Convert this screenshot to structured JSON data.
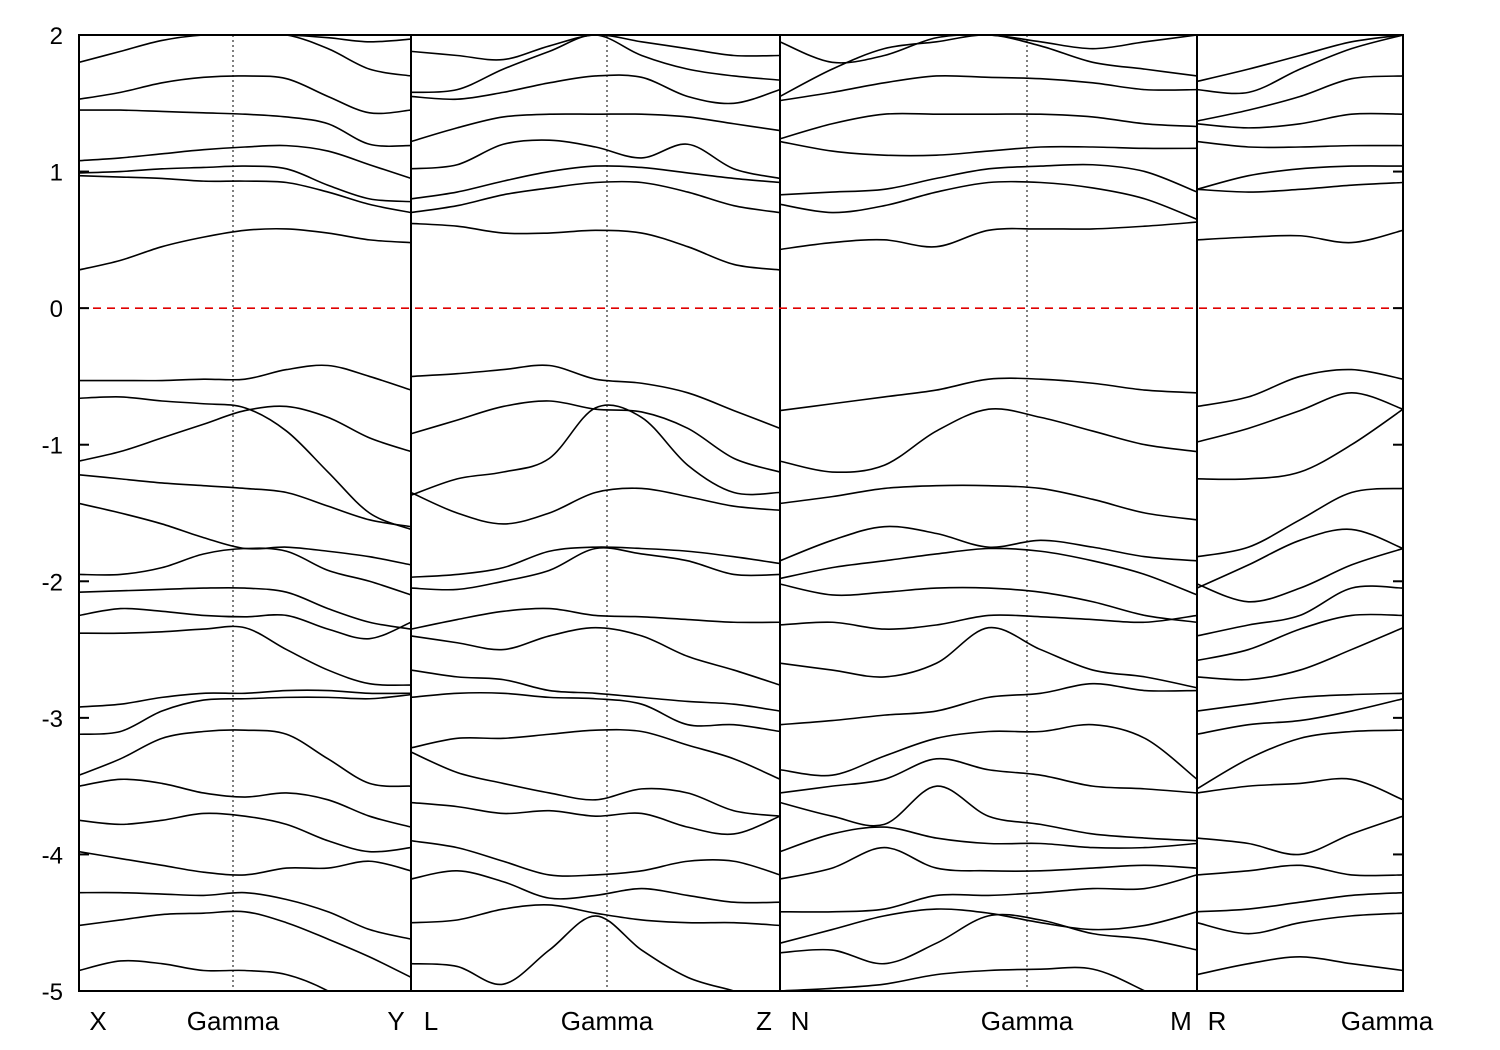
{
  "chart_data": {
    "type": "line",
    "title": "",
    "xlabel": "",
    "ylabel": "",
    "ylim": [
      -5,
      2
    ],
    "yticks": [
      -5,
      -4,
      -3,
      -2,
      -1,
      0,
      1,
      2
    ],
    "grid": false,
    "legend": "none",
    "x_label_set": [
      "X",
      "Gamma",
      "Y",
      "L",
      "Gamma",
      "Z",
      "N",
      "Gamma",
      "M",
      "R",
      "Gamma"
    ],
    "segments": [
      {
        "labels": [
          "X",
          "Gamma",
          "Y"
        ],
        "x": [
          0.0,
          0.25,
          0.5,
          0.75,
          1.0,
          1.25,
          1.5,
          1.75,
          2.0
        ],
        "bands": [
          [
            -4.85,
            -4.78,
            -4.8,
            -4.85,
            -4.85,
            -4.88,
            -5.0,
            -5.2,
            -5.3
          ],
          [
            -4.52,
            -4.48,
            -4.44,
            -4.43,
            -4.42,
            -4.5,
            -4.62,
            -4.75,
            -4.9
          ],
          [
            -4.28,
            -4.28,
            -4.29,
            -4.3,
            -4.28,
            -4.33,
            -4.42,
            -4.55,
            -4.62
          ],
          [
            -3.98,
            -4.03,
            -4.08,
            -4.13,
            -4.15,
            -4.1,
            -4.1,
            -4.05,
            -4.12
          ],
          [
            -3.75,
            -3.78,
            -3.75,
            -3.7,
            -3.72,
            -3.78,
            -3.9,
            -3.98,
            -3.95
          ],
          [
            -3.5,
            -3.45,
            -3.48,
            -3.55,
            -3.58,
            -3.55,
            -3.6,
            -3.72,
            -3.8
          ],
          [
            -3.42,
            -3.3,
            -3.15,
            -3.1,
            -3.09,
            -3.12,
            -3.3,
            -3.48,
            -3.5
          ],
          [
            -3.12,
            -3.1,
            -2.95,
            -2.87,
            -2.86,
            -2.85,
            -2.85,
            -2.86,
            -2.83
          ],
          [
            -2.92,
            -2.9,
            -2.85,
            -2.82,
            -2.82,
            -2.8,
            -2.8,
            -2.82,
            -2.82
          ],
          [
            -2.38,
            -2.38,
            -2.37,
            -2.35,
            -2.34,
            -2.5,
            -2.65,
            -2.75,
            -2.76
          ],
          [
            -2.25,
            -2.2,
            -2.22,
            -2.25,
            -2.26,
            -2.25,
            -2.35,
            -2.42,
            -2.3
          ],
          [
            -2.08,
            -2.07,
            -2.06,
            -2.05,
            -2.05,
            -2.08,
            -2.2,
            -2.3,
            -2.35
          ],
          [
            -1.95,
            -1.95,
            -1.9,
            -1.8,
            -1.76,
            -1.78,
            -1.92,
            -2.0,
            -2.1
          ],
          [
            -1.43,
            -1.5,
            -1.58,
            -1.68,
            -1.76,
            -1.75,
            -1.78,
            -1.82,
            -1.88
          ],
          [
            -1.22,
            -1.25,
            -1.28,
            -1.3,
            -1.32,
            -1.35,
            -1.45,
            -1.55,
            -1.6
          ],
          [
            -1.12,
            -1.05,
            -0.95,
            -0.85,
            -0.75,
            -0.72,
            -0.8,
            -0.95,
            -1.05
          ],
          [
            -0.66,
            -0.65,
            -0.68,
            -0.7,
            -0.73,
            -0.9,
            -1.2,
            -1.5,
            -1.62
          ],
          [
            -0.53,
            -0.53,
            -0.53,
            -0.52,
            -0.52,
            -0.45,
            -0.42,
            -0.5,
            -0.6
          ],
          [
            0.28,
            0.35,
            0.45,
            0.52,
            0.57,
            0.58,
            0.55,
            0.5,
            0.48
          ],
          [
            0.97,
            0.96,
            0.95,
            0.93,
            0.93,
            0.92,
            0.85,
            0.76,
            0.7
          ],
          [
            0.99,
            1.0,
            1.02,
            1.03,
            1.04,
            1.02,
            0.9,
            0.8,
            0.78
          ],
          [
            1.08,
            1.1,
            1.13,
            1.16,
            1.18,
            1.19,
            1.15,
            1.05,
            0.95
          ],
          [
            1.45,
            1.45,
            1.44,
            1.43,
            1.42,
            1.4,
            1.35,
            1.2,
            1.19
          ],
          [
            1.53,
            1.58,
            1.65,
            1.69,
            1.7,
            1.68,
            1.55,
            1.43,
            1.45
          ],
          [
            1.8,
            1.88,
            1.96,
            2.0,
            2.0,
            2.0,
            1.9,
            1.75,
            1.7
          ],
          [
            2.1,
            2.08,
            2.05,
            2.02,
            2.0,
            2.0,
            1.98,
            1.95,
            1.97
          ]
        ]
      },
      {
        "labels": [
          "L",
          "Gamma",
          "Z"
        ],
        "x": [
          0.0,
          0.25,
          0.5,
          0.75,
          1.0,
          1.25,
          1.5,
          1.75,
          2.0
        ],
        "bands": [
          [
            -4.8,
            -4.82,
            -4.95,
            -4.7,
            -4.45,
            -4.7,
            -4.9,
            -5.0,
            -5.1
          ],
          [
            -4.5,
            -4.48,
            -4.4,
            -4.37,
            -4.43,
            -4.48,
            -4.5,
            -4.5,
            -4.52
          ],
          [
            -4.18,
            -4.12,
            -4.2,
            -4.32,
            -4.3,
            -4.25,
            -4.3,
            -4.35,
            -4.35
          ],
          [
            -3.9,
            -3.95,
            -4.05,
            -4.15,
            -4.15,
            -4.12,
            -4.05,
            -4.05,
            -4.15
          ],
          [
            -3.62,
            -3.65,
            -3.7,
            -3.68,
            -3.72,
            -3.7,
            -3.8,
            -3.85,
            -3.72
          ],
          [
            -3.25,
            -3.4,
            -3.48,
            -3.55,
            -3.6,
            -3.52,
            -3.55,
            -3.68,
            -3.72
          ],
          [
            -3.22,
            -3.15,
            -3.15,
            -3.12,
            -3.09,
            -3.1,
            -3.2,
            -3.3,
            -3.45
          ],
          [
            -2.85,
            -2.82,
            -2.82,
            -2.85,
            -2.86,
            -2.9,
            -3.05,
            -3.05,
            -3.1
          ],
          [
            -2.65,
            -2.7,
            -2.72,
            -2.8,
            -2.82,
            -2.85,
            -2.88,
            -2.9,
            -2.95
          ],
          [
            -2.4,
            -2.45,
            -2.5,
            -2.4,
            -2.34,
            -2.4,
            -2.55,
            -2.65,
            -2.76
          ],
          [
            -2.35,
            -2.28,
            -2.22,
            -2.2,
            -2.25,
            -2.26,
            -2.28,
            -2.3,
            -2.3
          ],
          [
            -2.05,
            -2.06,
            -2.0,
            -1.92,
            -1.76,
            -1.8,
            -1.85,
            -1.95,
            -1.95
          ],
          [
            -1.97,
            -1.95,
            -1.9,
            -1.78,
            -1.75,
            -1.76,
            -1.78,
            -1.82,
            -1.87
          ],
          [
            -1.35,
            -1.5,
            -1.58,
            -1.5,
            -1.35,
            -1.32,
            -1.38,
            -1.45,
            -1.48
          ],
          [
            -1.37,
            -1.25,
            -1.2,
            -1.1,
            -0.73,
            -0.8,
            -1.15,
            -1.35,
            -1.35
          ],
          [
            -0.92,
            -0.82,
            -0.72,
            -0.68,
            -0.74,
            -0.76,
            -0.88,
            -1.1,
            -1.2
          ],
          [
            -0.5,
            -0.48,
            -0.45,
            -0.42,
            -0.52,
            -0.55,
            -0.62,
            -0.75,
            -0.88
          ],
          [
            0.62,
            0.6,
            0.55,
            0.55,
            0.57,
            0.55,
            0.45,
            0.32,
            0.28
          ],
          [
            0.7,
            0.75,
            0.83,
            0.88,
            0.92,
            0.92,
            0.85,
            0.75,
            0.7
          ],
          [
            0.8,
            0.85,
            0.93,
            1.0,
            1.04,
            1.03,
            0.99,
            0.95,
            0.92
          ],
          [
            1.02,
            1.05,
            1.2,
            1.23,
            1.18,
            1.1,
            1.2,
            1.02,
            0.95
          ],
          [
            1.22,
            1.32,
            1.4,
            1.42,
            1.42,
            1.42,
            1.4,
            1.35,
            1.3
          ],
          [
            1.55,
            1.53,
            1.58,
            1.65,
            1.7,
            1.69,
            1.55,
            1.5,
            1.6
          ],
          [
            1.58,
            1.6,
            1.75,
            1.88,
            2.0,
            1.85,
            1.75,
            1.7,
            1.67
          ],
          [
            1.88,
            1.85,
            1.82,
            1.92,
            2.0,
            1.95,
            1.9,
            1.85,
            1.85
          ]
        ]
      },
      {
        "labels": [
          "N",
          "Gamma",
          "M"
        ],
        "x": [
          0.0,
          0.25,
          0.5,
          0.75,
          1.0,
          1.25,
          1.5,
          1.75,
          2.0
        ],
        "bands": [
          [
            -5.0,
            -4.98,
            -4.95,
            -4.88,
            -4.85,
            -4.84,
            -4.84,
            -5.0,
            -5.2
          ],
          [
            -4.72,
            -4.7,
            -4.8,
            -4.65,
            -4.45,
            -4.48,
            -4.58,
            -4.62,
            -4.7
          ],
          [
            -4.65,
            -4.55,
            -4.45,
            -4.4,
            -4.43,
            -4.5,
            -4.55,
            -4.52,
            -4.42
          ],
          [
            -4.42,
            -4.42,
            -4.4,
            -4.3,
            -4.3,
            -4.28,
            -4.25,
            -4.25,
            -4.15
          ],
          [
            -4.18,
            -4.1,
            -3.95,
            -4.1,
            -4.12,
            -4.12,
            -4.1,
            -4.08,
            -4.1
          ],
          [
            -3.98,
            -3.85,
            -3.8,
            -3.88,
            -3.92,
            -3.92,
            -3.95,
            -3.95,
            -3.92
          ],
          [
            -3.62,
            -3.72,
            -3.78,
            -3.5,
            -3.72,
            -3.78,
            -3.85,
            -3.88,
            -3.9
          ],
          [
            -3.55,
            -3.5,
            -3.45,
            -3.3,
            -3.38,
            -3.42,
            -3.5,
            -3.52,
            -3.55
          ],
          [
            -3.38,
            -3.42,
            -3.28,
            -3.15,
            -3.1,
            -3.1,
            -3.05,
            -3.15,
            -3.45
          ],
          [
            -3.05,
            -3.02,
            -2.98,
            -2.95,
            -2.85,
            -2.82,
            -2.75,
            -2.8,
            -2.8
          ],
          [
            -2.6,
            -2.65,
            -2.7,
            -2.6,
            -2.34,
            -2.5,
            -2.65,
            -2.7,
            -2.78
          ],
          [
            -2.32,
            -2.3,
            -2.35,
            -2.32,
            -2.25,
            -2.26,
            -2.28,
            -2.3,
            -2.25
          ],
          [
            -2.02,
            -2.1,
            -2.08,
            -2.05,
            -2.05,
            -2.08,
            -2.15,
            -2.25,
            -2.3
          ],
          [
            -1.98,
            -1.9,
            -1.85,
            -1.8,
            -1.76,
            -1.78,
            -1.85,
            -1.95,
            -2.1
          ],
          [
            -1.85,
            -1.7,
            -1.6,
            -1.65,
            -1.75,
            -1.7,
            -1.75,
            -1.82,
            -1.85
          ],
          [
            -1.43,
            -1.38,
            -1.32,
            -1.3,
            -1.3,
            -1.32,
            -1.4,
            -1.5,
            -1.55
          ],
          [
            -1.12,
            -1.2,
            -1.15,
            -0.9,
            -0.74,
            -0.8,
            -0.9,
            -1.0,
            -1.05
          ],
          [
            -0.75,
            -0.7,
            -0.65,
            -0.6,
            -0.52,
            -0.52,
            -0.55,
            -0.6,
            -0.62
          ],
          [
            0.43,
            0.48,
            0.5,
            0.45,
            0.57,
            0.58,
            0.58,
            0.6,
            0.63
          ],
          [
            0.76,
            0.7,
            0.75,
            0.85,
            0.92,
            0.92,
            0.88,
            0.8,
            0.65
          ],
          [
            0.83,
            0.85,
            0.87,
            0.95,
            1.02,
            1.04,
            1.05,
            1.0,
            0.85
          ],
          [
            1.22,
            1.15,
            1.12,
            1.12,
            1.15,
            1.18,
            1.18,
            1.17,
            1.17
          ],
          [
            1.24,
            1.35,
            1.42,
            1.42,
            1.42,
            1.42,
            1.4,
            1.35,
            1.33
          ],
          [
            1.52,
            1.58,
            1.65,
            1.7,
            1.69,
            1.68,
            1.65,
            1.6,
            1.6
          ],
          [
            1.55,
            1.75,
            1.9,
            1.95,
            2.0,
            1.92,
            1.8,
            1.75,
            1.7
          ],
          [
            1.95,
            1.8,
            1.85,
            1.98,
            2.0,
            1.95,
            1.9,
            1.95,
            2.0
          ]
        ]
      },
      {
        "labels": [
          "R",
          "Gamma"
        ],
        "x": [
          0.0,
          0.25,
          0.5,
          0.75,
          1.0
        ],
        "bands": [
          [
            -4.88,
            -4.8,
            -4.75,
            -4.8,
            -4.85
          ],
          [
            -4.5,
            -4.58,
            -4.5,
            -4.45,
            -4.43
          ],
          [
            -4.42,
            -4.4,
            -4.35,
            -4.3,
            -4.28
          ],
          [
            -4.15,
            -4.12,
            -4.08,
            -4.15,
            -4.15
          ],
          [
            -3.88,
            -3.92,
            -4.0,
            -3.85,
            -3.72
          ],
          [
            -3.55,
            -3.5,
            -3.48,
            -3.45,
            -3.6
          ],
          [
            -3.52,
            -3.3,
            -3.15,
            -3.1,
            -3.09
          ],
          [
            -3.12,
            -3.05,
            -3.02,
            -2.95,
            -2.86
          ],
          [
            -2.95,
            -2.9,
            -2.85,
            -2.83,
            -2.82
          ],
          [
            -2.7,
            -2.72,
            -2.65,
            -2.5,
            -2.34
          ],
          [
            -2.58,
            -2.5,
            -2.35,
            -2.25,
            -2.25
          ],
          [
            -2.4,
            -2.32,
            -2.25,
            -2.05,
            -2.05
          ],
          [
            -2.02,
            -2.15,
            -2.05,
            -1.88,
            -1.76
          ],
          [
            -2.05,
            -1.88,
            -1.7,
            -1.62,
            -1.76
          ],
          [
            -1.82,
            -1.75,
            -1.55,
            -1.35,
            -1.32
          ],
          [
            -1.25,
            -1.25,
            -1.2,
            -1.0,
            -0.74
          ],
          [
            -0.98,
            -0.88,
            -0.75,
            -0.62,
            -0.74
          ],
          [
            -0.72,
            -0.65,
            -0.5,
            -0.45,
            -0.52
          ],
          [
            0.5,
            0.52,
            0.53,
            0.48,
            0.57
          ],
          [
            0.87,
            0.85,
            0.87,
            0.9,
            0.92
          ],
          [
            0.87,
            0.97,
            1.02,
            1.04,
            1.04
          ],
          [
            1.22,
            1.18,
            1.18,
            1.19,
            1.19
          ],
          [
            1.35,
            1.32,
            1.35,
            1.42,
            1.42
          ],
          [
            1.37,
            1.45,
            1.55,
            1.68,
            1.7
          ],
          [
            1.6,
            1.58,
            1.75,
            1.9,
            2.0
          ],
          [
            1.66,
            1.75,
            1.85,
            1.95,
            2.0
          ]
        ]
      }
    ]
  }
}
